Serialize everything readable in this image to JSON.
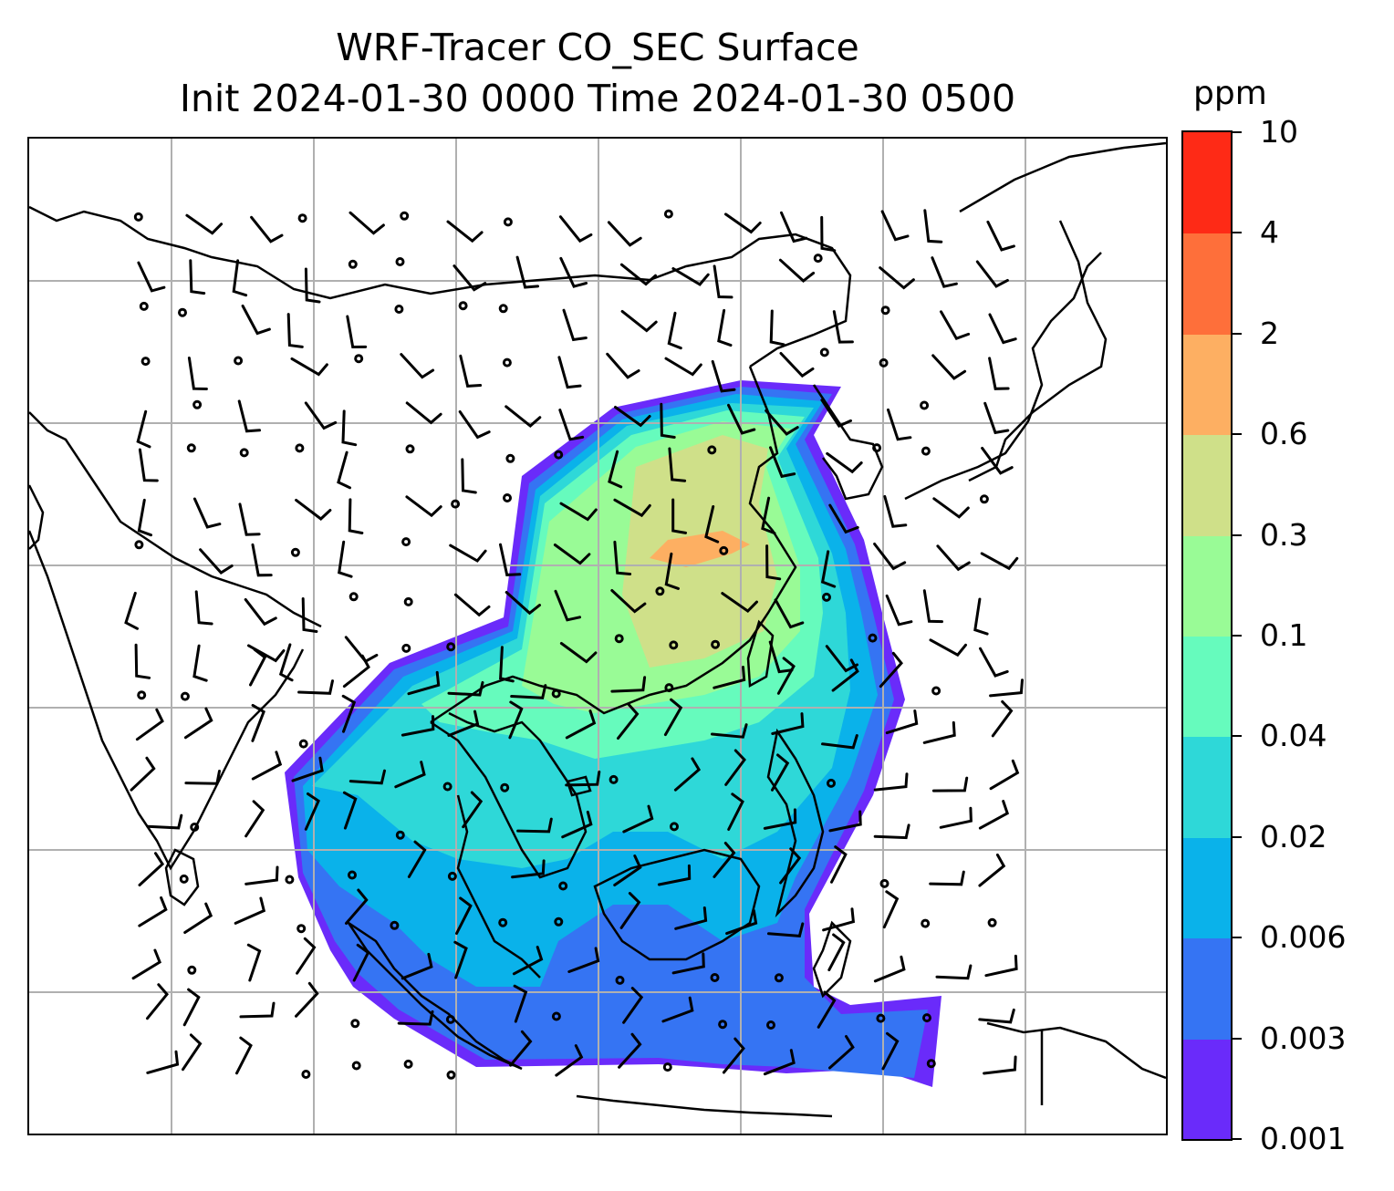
{
  "title": {
    "line1": "WRF-Tracer CO_SEC Surface",
    "line2": "Init 2024-01-30 0000 Time 2024-01-30 0500"
  },
  "colorbar": {
    "unit": "ppm",
    "levels": [
      "0.001",
      "0.003",
      "0.006",
      "0.02",
      "0.04",
      "0.1",
      "0.3",
      "0.6",
      "2",
      "4",
      "10"
    ],
    "colors": [
      "#6a2bfa",
      "#3574f3",
      "#0ab2ea",
      "#2ed8d8",
      "#66fbbd",
      "#99fb96",
      "#cfe089",
      "#fdaf62",
      "#fe6f3a",
      "#fe2a16"
    ]
  },
  "map": {
    "gridline_color": "#b0b0b0",
    "coastline_color": "#000000",
    "field_colors": [
      "#6a2bfa",
      "#3574f3",
      "#0ab2ea",
      "#2ed8d8",
      "#66fbbd",
      "#99fb96",
      "#cfe089",
      "#fdaf62"
    ]
  }
}
